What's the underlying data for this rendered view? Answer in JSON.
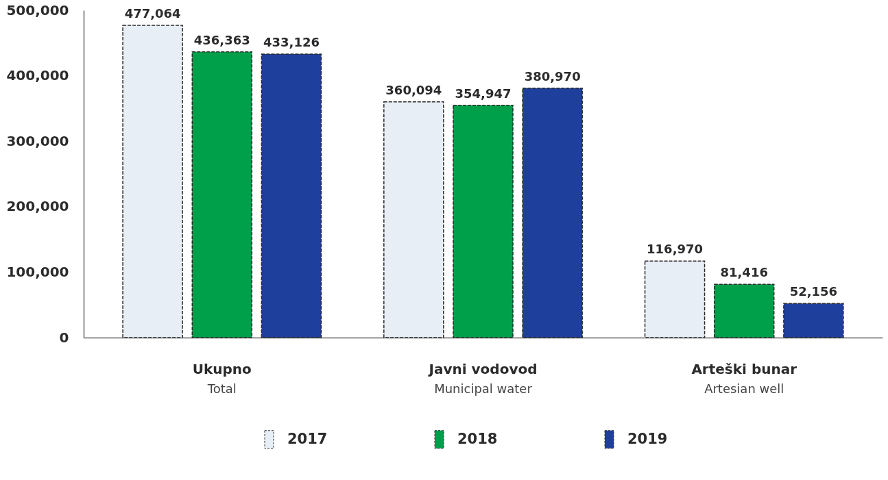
{
  "chart_data": {
    "type": "bar",
    "categories": [
      "Ukupno\nTotal",
      "Javni vodovod\nMunicipal water",
      "Arteški bunar\nArtesian well"
    ],
    "series": [
      {
        "name": "2017",
        "color": "#e8eef5",
        "values": [
          477064,
          360094,
          116970
        ],
        "value_labels": [
          "477,064",
          "360,094",
          "116,970"
        ]
      },
      {
        "name": "2018",
        "color": "#00a04b",
        "values": [
          436363,
          354947,
          81416
        ],
        "value_labels": [
          "436,363",
          "354,947",
          "81,416"
        ]
      },
      {
        "name": "2019",
        "color": "#1f3f9c",
        "values": [
          433126,
          380970,
          52156
        ],
        "value_labels": [
          "433,126",
          "380,970",
          "52,156"
        ]
      }
    ],
    "ylim": [
      0,
      500000
    ],
    "yticks": [
      {
        "value": 0,
        "label": "0"
      },
      {
        "value": 100000,
        "label": "100,000"
      },
      {
        "value": 200000,
        "label": "200,000"
      },
      {
        "value": 300000,
        "label": "300,000"
      },
      {
        "value": 400000,
        "label": "400,000"
      },
      {
        "value": 500000,
        "label": "500,000"
      }
    ],
    "legend": "bottom",
    "grid": false
  }
}
